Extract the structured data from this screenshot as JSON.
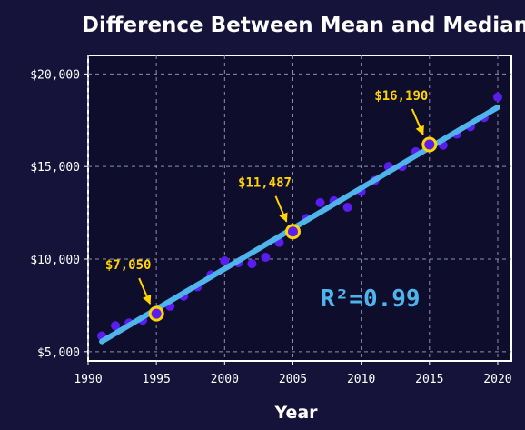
{
  "colors": {
    "background": "#15133a",
    "plot_background": "#0e0d2c",
    "points": "#5b1cf0",
    "trend": "#4fb4ec",
    "highlight": "#ffd400",
    "grid": "#8f8fae",
    "text": "#ffffff"
  },
  "chart_data": {
    "type": "scatter",
    "title": "Difference Between Mean and Median",
    "xlabel": "Year",
    "ylabel": "",
    "xlim": [
      1990,
      2021
    ],
    "ylim": [
      4500,
      21000
    ],
    "x_ticks": [
      1990,
      1995,
      2000,
      2005,
      2010,
      2015,
      2020
    ],
    "x_tick_labels": [
      "1990",
      "1995",
      "2000",
      "2005",
      "2010",
      "2015",
      "2020"
    ],
    "y_ticks": [
      5000,
      10000,
      15000,
      20000
    ],
    "y_tick_labels": [
      "$5,000",
      "$10,000",
      "$15,000",
      "$20,000"
    ],
    "grid": true,
    "series": [
      {
        "x": [
          1991,
          1992,
          1993,
          1994,
          1995,
          1996,
          1997,
          1998,
          1999,
          2000,
          2001,
          2002,
          2003,
          2004,
          2005,
          2006,
          2007,
          2008,
          2009,
          2010,
          2011,
          2012,
          2013,
          2014,
          2015,
          2016,
          2017,
          2018,
          2019,
          2020
        ],
        "y": [
          5850,
          6400,
          6550,
          6700,
          7050,
          7450,
          8000,
          8500,
          9150,
          9900,
          9800,
          9750,
          10100,
          10900,
          11487,
          12200,
          13050,
          13150,
          12800,
          13650,
          14250,
          15000,
          15000,
          15800,
          16190,
          16150,
          16750,
          17150,
          17650,
          18750
        ]
      }
    ],
    "trendline": {
      "x": [
        1991,
        2020
      ],
      "y": [
        5550,
        18200
      ]
    },
    "highlights": [
      {
        "x": 1995,
        "y": 7050,
        "label": "$7,050"
      },
      {
        "x": 2005,
        "y": 11487,
        "label": "$11,487"
      },
      {
        "x": 2015,
        "y": 16190,
        "label": "$16,190"
      }
    ],
    "annotation": {
      "text": "R²=0.99"
    }
  }
}
